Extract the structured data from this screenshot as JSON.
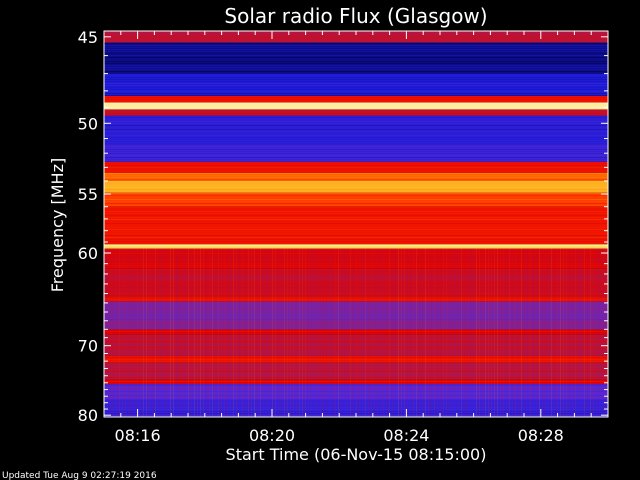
{
  "chart_data": {
    "type": "heatmap",
    "title": "Solar radio Flux (Glasgow)",
    "xlabel": "Start Time (06-Nov-15 08:15:00)",
    "ylabel": "Frequency [MHz]",
    "x_tick_labels": [
      "08:16",
      "08:20",
      "08:24",
      "08:28"
    ],
    "x_ticks_minutes": [
      16,
      20,
      24,
      28
    ],
    "x_range_minutes": [
      15.0,
      30.0
    ],
    "y_ticks": [
      45,
      50,
      55,
      60,
      70,
      80
    ],
    "y_scale": "reciprocal",
    "y_range": [
      44.7,
      80.3
    ],
    "colormap": [
      "#00003c",
      "#1a1ad6",
      "#5a28d8",
      "#b01848",
      "#e00000",
      "#ff2a00",
      "#ff8a00",
      "#ffd040",
      "#fff8c0"
    ],
    "bands": [
      {
        "from": 44.7,
        "to": 45.3,
        "level": 0.4
      },
      {
        "from": 45.3,
        "to": 47.0,
        "level": 0.06
      },
      {
        "from": 47.0,
        "to": 48.3,
        "level": 0.13
      },
      {
        "from": 48.3,
        "to": 48.7,
        "level": 0.55
      },
      {
        "from": 48.7,
        "to": 49.1,
        "level": 0.97
      },
      {
        "from": 49.1,
        "to": 49.5,
        "level": 0.42
      },
      {
        "from": 49.5,
        "to": 51.5,
        "level": 0.16
      },
      {
        "from": 51.5,
        "to": 52.6,
        "level": 0.2
      },
      {
        "from": 52.6,
        "to": 53.4,
        "level": 0.55
      },
      {
        "from": 53.4,
        "to": 54.0,
        "level": 0.7
      },
      {
        "from": 54.0,
        "to": 54.9,
        "level": 0.82
      },
      {
        "from": 54.9,
        "to": 56.0,
        "level": 0.65
      },
      {
        "from": 56.0,
        "to": 59.2,
        "level": 0.56
      },
      {
        "from": 59.2,
        "to": 59.6,
        "level": 0.92
      },
      {
        "from": 59.6,
        "to": 61.5,
        "level": 0.48
      },
      {
        "from": 61.5,
        "to": 64.3,
        "level": 0.44
      },
      {
        "from": 64.3,
        "to": 64.8,
        "level": 0.55
      },
      {
        "from": 64.8,
        "to": 68.0,
        "level": 0.3
      },
      {
        "from": 68.0,
        "to": 68.6,
        "level": 0.5
      },
      {
        "from": 68.6,
        "to": 71.3,
        "level": 0.42
      },
      {
        "from": 71.3,
        "to": 72.2,
        "level": 0.55
      },
      {
        "from": 72.2,
        "to": 74.5,
        "level": 0.4
      },
      {
        "from": 74.5,
        "to": 75.2,
        "level": 0.5
      },
      {
        "from": 75.2,
        "to": 77.5,
        "level": 0.24
      },
      {
        "from": 77.5,
        "to": 80.3,
        "level": 0.18
      }
    ],
    "grid": false,
    "legend": "none"
  },
  "footer": {
    "updated": "Updated Tue Aug  9 02:27:19 2016"
  }
}
